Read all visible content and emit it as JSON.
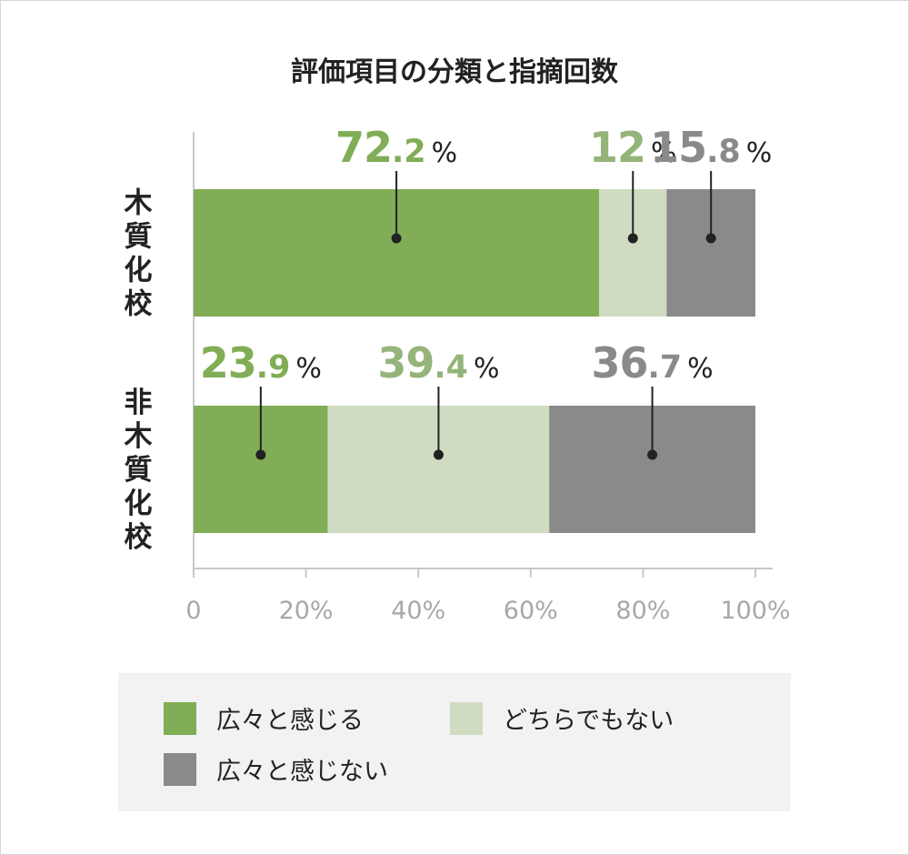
{
  "title": "評価項目の分類と指摘回数",
  "chart_data": {
    "type": "bar",
    "orientation": "horizontal",
    "stacked": true,
    "normalized": true,
    "categories": [
      "木質化校",
      "非木質化校"
    ],
    "series": [
      {
        "name": "広々と感じる",
        "color": "#80ad55",
        "label_color": "#80ad55",
        "values": [
          72.2,
          23.9
        ],
        "labels": [
          "72.2",
          "23.9"
        ]
      },
      {
        "name": "どちらでもない",
        "color": "#d0dcc2",
        "label_color": "#94b47a",
        "values": [
          12,
          39.4
        ],
        "labels": [
          "12",
          "39.4"
        ]
      },
      {
        "name": "広々と感じない",
        "color": "#8a8a8a",
        "label_color": "#8a8a8a",
        "values": [
          15.8,
          36.7
        ],
        "labels": [
          "15.8",
          "36.7"
        ]
      }
    ],
    "unit": "%",
    "x_ticks": [
      "0",
      "20%",
      "40%",
      "60%",
      "80%",
      "100%"
    ],
    "xlim": [
      0,
      100
    ],
    "legend_position": "bottom"
  }
}
